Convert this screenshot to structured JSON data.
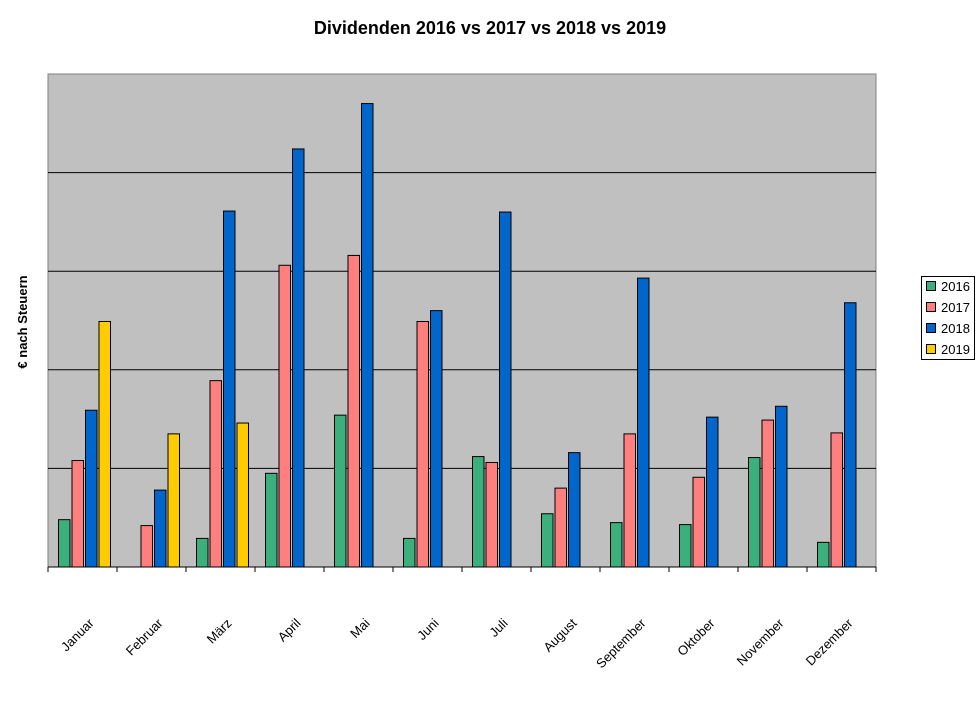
{
  "chart_data": {
    "type": "bar",
    "title": "Dividenden 2016 vs 2017 vs 2018 vs 2019",
    "xlabel": "",
    "ylabel": "€ nach Steuern",
    "ylim": [
      0,
      5
    ],
    "gridlines": true,
    "legend_position": "right",
    "categories": [
      "Januar",
      "Februar",
      "März",
      "April",
      "Mai",
      "Juni",
      "Juli",
      "August",
      "September",
      "Oktober",
      "November",
      "Dezember"
    ],
    "series": [
      {
        "name": "2016",
        "color": "#3CB07C",
        "values": [
          0.48,
          0,
          0.29,
          0.95,
          1.54,
          0.29,
          1.12,
          0.54,
          0.45,
          0.43,
          1.11,
          0.25
        ]
      },
      {
        "name": "2017",
        "color": "#FF7F7F",
        "values": [
          1.08,
          0.42,
          1.89,
          3.06,
          3.16,
          2.49,
          1.06,
          0.8,
          1.35,
          0.91,
          1.49,
          1.36
        ]
      },
      {
        "name": "2018",
        "color": "#0066CC",
        "values": [
          1.59,
          0.78,
          3.61,
          4.24,
          4.7,
          2.6,
          3.6,
          1.16,
          2.93,
          1.52,
          1.63,
          2.68
        ]
      },
      {
        "name": "2019",
        "color": "#FFCC00",
        "values": [
          2.49,
          1.35,
          1.46,
          null,
          null,
          null,
          null,
          null,
          null,
          null,
          null,
          null
        ]
      }
    ]
  }
}
